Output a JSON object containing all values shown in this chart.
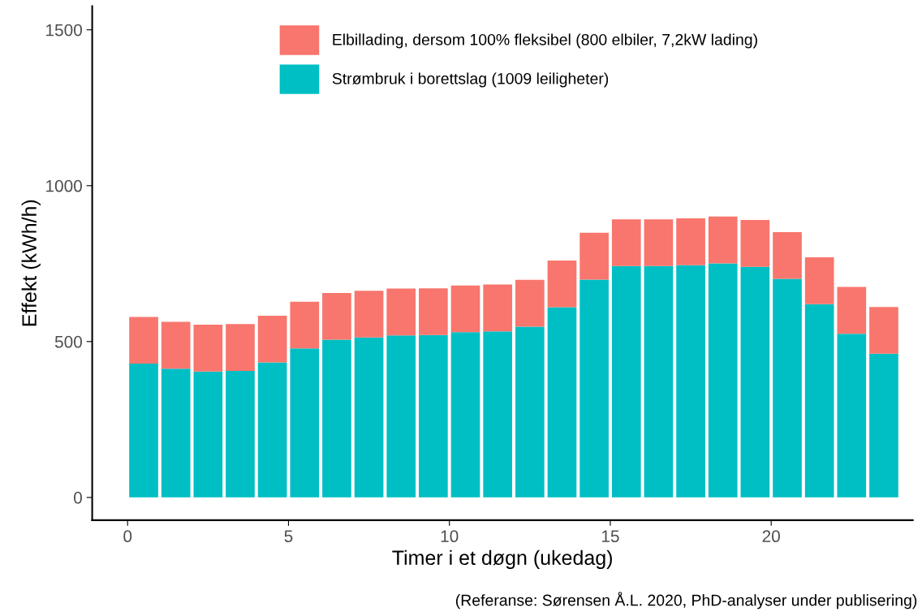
{
  "chart_data": {
    "type": "bar",
    "stacked": true,
    "xlabel": "Timer i et døgn (ukedag)",
    "ylabel": "Effekt (kWh/h)",
    "x": [
      0.5,
      1.5,
      2.5,
      3.5,
      4.5,
      5.5,
      6.5,
      7.5,
      8.5,
      9.5,
      10.5,
      11.5,
      12.5,
      13.5,
      14.5,
      15.5,
      16.5,
      17.5,
      18.5,
      19.5,
      20.5,
      21.5,
      22.5,
      23.5
    ],
    "series": [
      {
        "name": "Strømbruk i borettslag (1009 leiligheter)",
        "color": "#00bfc4",
        "values": [
          429,
          413,
          404,
          406,
          433,
          478,
          506,
          513,
          520,
          521,
          530,
          533,
          548,
          610,
          699,
          742,
          742,
          745,
          751,
          740,
          701,
          620,
          525,
          461
        ]
      },
      {
        "name": "Elbillading, dersom 100% fleksibel (800 elbiler, 7,2kW lading)",
        "color": "#f8766d",
        "values": [
          150,
          150,
          150,
          150,
          150,
          150,
          150,
          150,
          150,
          150,
          150,
          150,
          150,
          150,
          150,
          150,
          150,
          150,
          150,
          150,
          150,
          150,
          150,
          150
        ]
      }
    ],
    "xlim": [
      -1.1,
      24.4
    ],
    "xticks": [
      0,
      5,
      10,
      15,
      20
    ],
    "ylim": [
      -73,
      1576
    ],
    "yticks": [
      0,
      500,
      1000,
      1500
    ],
    "grid": false,
    "legend": "top",
    "annotations": [
      "(Referanse: Sørensen Å.L. 2020, PhD-analyser under publisering)"
    ]
  }
}
